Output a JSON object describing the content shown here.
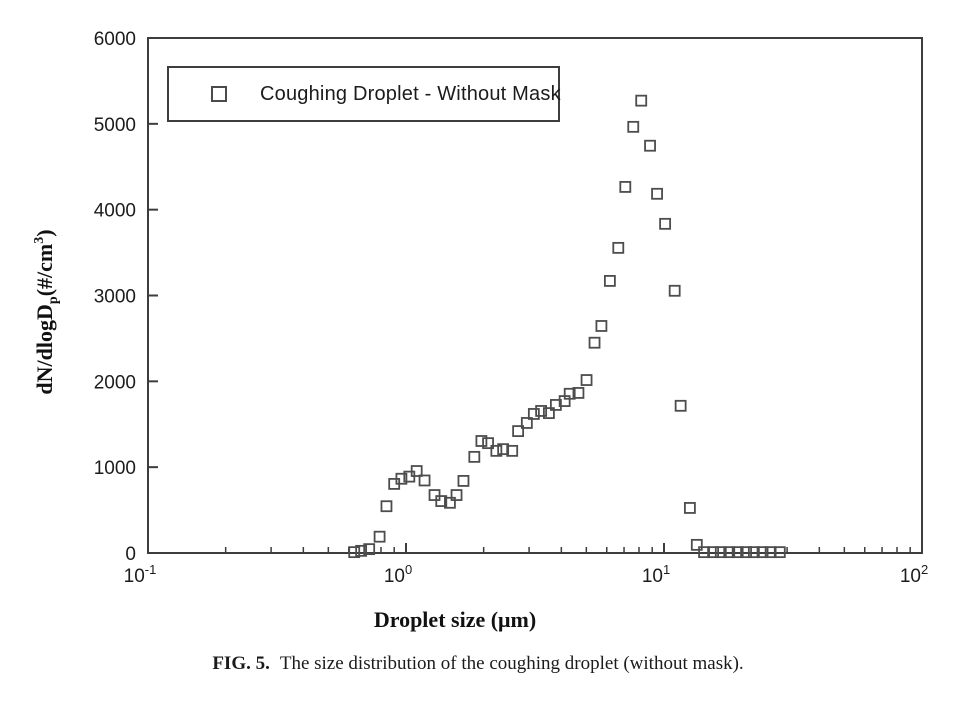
{
  "figure": {
    "caption_label": "FIG. 5.",
    "caption_text": "The size distribution of the coughing droplet (without mask)."
  },
  "legend": {
    "label": "Coughing Droplet - Without Mask",
    "marker": "open-square",
    "position": "top-left"
  },
  "axes": {
    "x_title": "Droplet size (μm)",
    "y_title": {
      "main": "dN/dlogD",
      "sub": "p",
      "unit_open": "(#/cm",
      "sup": "3",
      "unit_close": ")"
    }
  },
  "style": {
    "axis_color": "#3d3d3d",
    "marker_color": "#4d4d4d",
    "text_color": "#1c1c1c",
    "background": "#ffffff"
  },
  "chart_data": {
    "type": "scatter",
    "title": "",
    "xlabel": "Droplet size (μm)",
    "ylabel": "dN/dlogDp (#/cm3)",
    "x_scale": "log",
    "xlim": [
      0.1,
      100
    ],
    "ylim": [
      0,
      6000
    ],
    "x_major_ticks": [
      0.1,
      1,
      10,
      100
    ],
    "x_tick_labels": [
      "10⁻¹",
      "10⁰",
      "10¹",
      "10²"
    ],
    "y_ticks": [
      0,
      1000,
      2000,
      3000,
      4000,
      5000,
      6000
    ],
    "grid": false,
    "legend_position": "top-left",
    "series": [
      {
        "name": "Coughing Droplet - Without Mask",
        "marker": "open-square",
        "points": [
          [
            0.63,
            10
          ],
          [
            0.67,
            25
          ],
          [
            0.72,
            45
          ],
          [
            0.79,
            190
          ],
          [
            0.84,
            545
          ],
          [
            0.9,
            805
          ],
          [
            0.96,
            865
          ],
          [
            1.03,
            890
          ],
          [
            1.1,
            955
          ],
          [
            1.18,
            845
          ],
          [
            1.29,
            675
          ],
          [
            1.37,
            605
          ],
          [
            1.48,
            585
          ],
          [
            1.57,
            675
          ],
          [
            1.67,
            840
          ],
          [
            1.84,
            1120
          ],
          [
            1.96,
            1305
          ],
          [
            2.08,
            1280
          ],
          [
            2.24,
            1190
          ],
          [
            2.38,
            1210
          ],
          [
            2.58,
            1190
          ],
          [
            2.72,
            1420
          ],
          [
            2.94,
            1515
          ],
          [
            3.13,
            1620
          ],
          [
            3.34,
            1655
          ],
          [
            3.58,
            1630
          ],
          [
            3.81,
            1725
          ],
          [
            4.12,
            1770
          ],
          [
            4.31,
            1855
          ],
          [
            4.66,
            1865
          ],
          [
            5.01,
            2015
          ],
          [
            5.38,
            2450
          ],
          [
            5.72,
            2645
          ],
          [
            6.17,
            3170
          ],
          [
            6.65,
            3555
          ],
          [
            7.08,
            4265
          ],
          [
            7.6,
            4965
          ],
          [
            8.16,
            5270
          ],
          [
            8.83,
            4745
          ],
          [
            9.4,
            4185
          ],
          [
            10.1,
            3835
          ],
          [
            11.0,
            3055
          ],
          [
            11.6,
            1715
          ],
          [
            12.6,
            525
          ],
          [
            13.4,
            95
          ],
          [
            14.3,
            10
          ],
          [
            15.5,
            10
          ],
          [
            16.6,
            10
          ],
          [
            17.9,
            10
          ],
          [
            19.3,
            10
          ],
          [
            20.8,
            10
          ],
          [
            22.3,
            10
          ],
          [
            24.1,
            10
          ],
          [
            25.9,
            10
          ],
          [
            28.1,
            10
          ]
        ]
      }
    ]
  }
}
